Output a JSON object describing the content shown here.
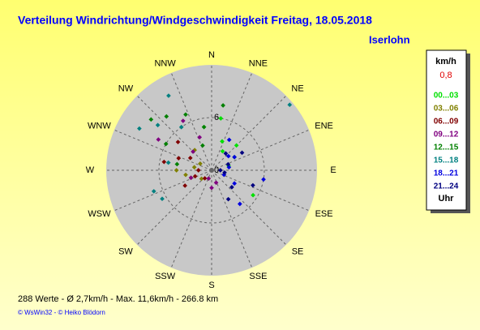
{
  "chart_data": {
    "type": "polar-scatter",
    "title": "Verteilung Windrichtung/Windgeschwindigkeit  Freitag, 18.05.2018",
    "location": "Iserlohn",
    "directions": [
      "N",
      "NNE",
      "NE",
      "ENE",
      "E",
      "ESE",
      "SE",
      "SSE",
      "S",
      "SSW",
      "SW",
      "WSW",
      "W",
      "WNW",
      "NW",
      "NNW"
    ],
    "rlim": [
      0,
      12
    ],
    "rticks": [
      0,
      6
    ],
    "legend_title": "km/h",
    "legend_value": "0,8",
    "legend_footer": "Uhr",
    "series": [
      {
        "name": "00...03",
        "color": "#00e000",
        "dir": [
          30,
          45,
          60,
          121,
          350,
          20,
          75,
          10
        ],
        "speed": [
          2.5,
          4,
          3,
          5.5,
          5,
          3.5,
          2,
          6
        ]
      },
      {
        "name": "03...06",
        "color": "#808000",
        "dir": [
          280,
          260,
          300,
          200,
          250,
          320,
          230,
          270
        ],
        "speed": [
          2,
          3,
          1.5,
          1,
          2.5,
          3,
          1.5,
          4
        ]
      },
      {
        "name": "06...09",
        "color": "#800000",
        "dir": [
          270,
          290,
          250,
          310,
          220,
          300,
          240,
          280
        ],
        "speed": [
          1.5,
          4,
          2,
          5,
          1.2,
          2.8,
          3.5,
          5.5
        ]
      },
      {
        "name": "09...12",
        "color": "#800080",
        "dir": [
          315,
          330,
          180,
          160,
          250,
          300,
          200,
          340
        ],
        "speed": [
          3,
          6.5,
          2,
          1.5,
          2.5,
          7,
          1,
          4
        ]
      },
      {
        "name": "12...15",
        "color": "#008000",
        "dir": [
          320,
          335,
          350,
          300,
          280,
          340,
          310,
          10
        ],
        "speed": [
          8,
          7,
          5,
          6,
          4,
          3,
          9,
          7.5
        ]
      },
      {
        "name": "15...18",
        "color": "#008080",
        "dir": [
          50,
          310,
          300,
          280,
          325,
          250,
          240,
          330
        ],
        "speed": [
          11.6,
          8,
          9.5,
          5,
          6,
          7,
          6.5,
          9.8
        ]
      },
      {
        "name": "18...21",
        "color": "#0000e0",
        "dir": [
          80,
          60,
          110,
          140,
          30,
          100,
          50,
          120
        ],
        "speed": [
          2,
          3,
          1.5,
          5,
          4,
          6,
          2.5,
          3
        ]
      },
      {
        "name": "21...24",
        "color": "#000080",
        "dir": [
          90,
          70,
          130,
          100,
          40,
          150,
          60,
          110
        ],
        "speed": [
          1,
          2,
          3,
          1.5,
          2.5,
          3.8,
          4,
          5
        ]
      }
    ],
    "footer": "288 Werte   -   Ø 2,7km/h  -  Max. 11,6km/h   -   266.8 km",
    "copyright": "© WsWin32  -  © Heiko Blödorn"
  }
}
